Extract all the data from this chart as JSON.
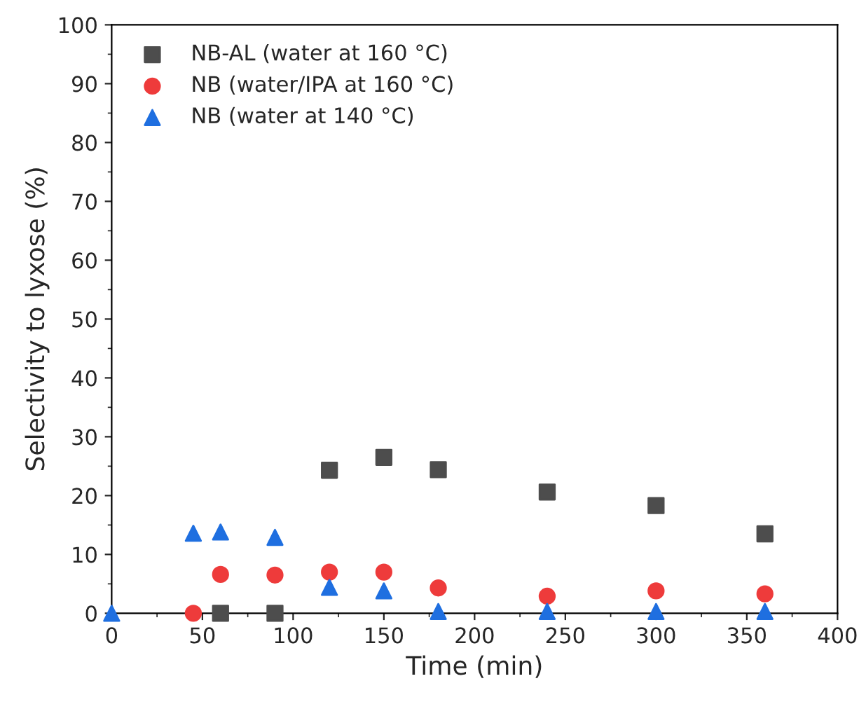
{
  "chart_data": {
    "type": "scatter",
    "xlabel": "Time (min)",
    "ylabel": "Selectivity to lyxose (%)",
    "xlim": [
      0,
      400
    ],
    "xticks": [
      0,
      50,
      100,
      150,
      200,
      250,
      300,
      350,
      400
    ],
    "ylim": [
      0,
      100
    ],
    "yticks": [
      0,
      10,
      20,
      30,
      40,
      50,
      60,
      70,
      80,
      90,
      100
    ],
    "grid": false,
    "legend": "top left",
    "series": [
      {
        "name": "NB-AL (water at 160 °C)",
        "color": "#4d4d4d",
        "marker": "square",
        "x": [
          60,
          90,
          120,
          150,
          180,
          240,
          300,
          360
        ],
        "values": [
          0,
          0,
          24.3,
          26.5,
          24.4,
          20.6,
          18.3,
          13.5
        ]
      },
      {
        "name": "NB (water/IPA at 160 °C)",
        "color": "#ee3b3b",
        "marker": "circle",
        "x": [
          45,
          60,
          90,
          120,
          150,
          180,
          240,
          300,
          360
        ],
        "values": [
          0,
          6.6,
          6.5,
          7.0,
          7.0,
          4.3,
          2.9,
          3.8,
          3.3
        ]
      },
      {
        "name": "NB (water at 140 °C)",
        "color": "#1f6fe0",
        "marker": "triangle",
        "x": [
          0,
          45,
          60,
          90,
          120,
          150,
          180,
          240,
          300,
          360
        ],
        "values": [
          0,
          13.6,
          13.8,
          12.9,
          4.4,
          3.8,
          0.3,
          0.3,
          0.3,
          0.3
        ]
      }
    ]
  }
}
